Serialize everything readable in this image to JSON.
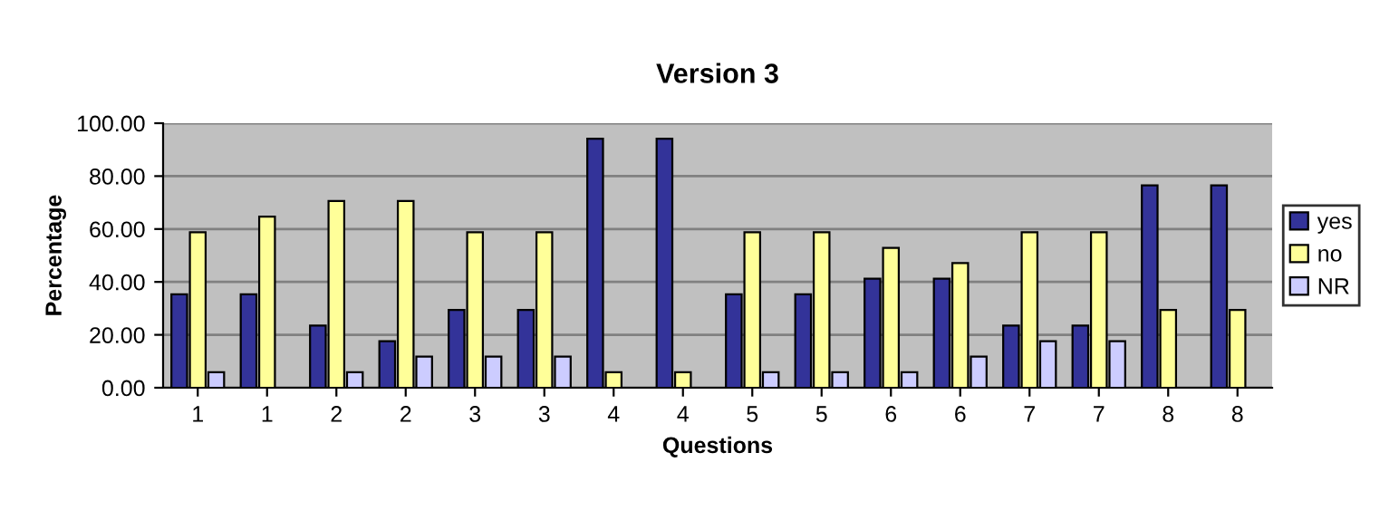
{
  "chart_data": {
    "type": "bar",
    "title": "Version 3",
    "xlabel": "Questions",
    "ylabel": "Percentage",
    "categories": [
      "1",
      "1",
      "2",
      "2",
      "3",
      "3",
      "4",
      "4",
      "5",
      "5",
      "6",
      "6",
      "7",
      "7",
      "8",
      "8"
    ],
    "series": [
      {
        "name": "yes",
        "color": "#333399",
        "values": [
          35.3,
          35.3,
          23.5,
          17.6,
          29.4,
          29.4,
          94.1,
          94.1,
          35.3,
          35.3,
          41.2,
          41.2,
          23.5,
          23.5,
          76.5,
          76.5
        ]
      },
      {
        "name": "no",
        "color": "#ffff99",
        "values": [
          58.8,
          64.7,
          70.6,
          70.6,
          58.8,
          58.8,
          5.9,
          5.9,
          58.8,
          58.8,
          52.9,
          47.1,
          58.8,
          58.8,
          29.4,
          29.4
        ]
      },
      {
        "name": "NR",
        "color": "#ccccff",
        "values": [
          5.9,
          null,
          5.9,
          11.8,
          11.8,
          11.8,
          null,
          null,
          5.9,
          5.9,
          5.9,
          11.8,
          17.6,
          17.6,
          null,
          null
        ]
      }
    ],
    "ylim": [
      0,
      100
    ],
    "yticks": [
      {
        "value": 0,
        "label": "0.00"
      },
      {
        "value": 20,
        "label": "20.00"
      },
      {
        "value": 40,
        "label": "40.00"
      },
      {
        "value": 60,
        "label": "60.00"
      },
      {
        "value": 80,
        "label": "80.00"
      },
      {
        "value": 100,
        "label": "100.00"
      }
    ],
    "grid": "y",
    "legend": "right"
  }
}
